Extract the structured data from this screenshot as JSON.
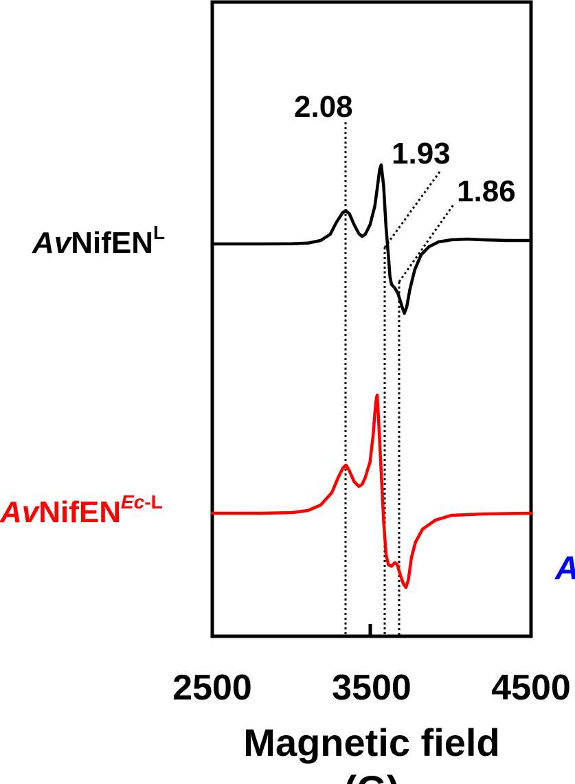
{
  "chart_data": {
    "type": "line",
    "xlabel": "Magnetic field",
    "xunit": "(G)",
    "xlim": [
      2500,
      4500
    ],
    "xticks": [
      2500,
      3500,
      4500
    ],
    "grid": false,
    "series": [
      {
        "name": "AvNifEN",
        "superscript": "L",
        "color": "#000000",
        "offset": 0,
        "points": [
          [
            2500,
            0
          ],
          [
            2800,
            0
          ],
          [
            3000,
            -0.3
          ],
          [
            3100,
            -1.2
          ],
          [
            3180,
            -5
          ],
          [
            3240,
            -14
          ],
          [
            3280,
            -32
          ],
          [
            3320,
            -46
          ],
          [
            3340,
            -48
          ],
          [
            3360,
            -44
          ],
          [
            3390,
            -28
          ],
          [
            3420,
            -15
          ],
          [
            3440,
            -11
          ],
          [
            3460,
            -14
          ],
          [
            3490,
            -28
          ],
          [
            3520,
            -55
          ],
          [
            3540,
            -90
          ],
          [
            3550,
            -108
          ],
          [
            3560,
            -115
          ],
          [
            3575,
            -85
          ],
          [
            3590,
            -25
          ],
          [
            3605,
            18
          ],
          [
            3615,
            48
          ],
          [
            3625,
            59
          ],
          [
            3645,
            64
          ],
          [
            3665,
            72
          ],
          [
            3690,
            91
          ],
          [
            3705,
            101
          ],
          [
            3720,
            92
          ],
          [
            3740,
            66
          ],
          [
            3770,
            38
          ],
          [
            3810,
            16
          ],
          [
            3860,
            4
          ],
          [
            3920,
            -3
          ],
          [
            4000,
            -6
          ],
          [
            4100,
            -7
          ],
          [
            4200,
            -6
          ],
          [
            4350,
            -5
          ],
          [
            4500,
            -5
          ]
        ]
      },
      {
        "name": "AvNifEN",
        "superscript": "Ec-L",
        "color": "#ff0000",
        "offset": 392,
        "points": [
          [
            2500,
            0
          ],
          [
            2800,
            0
          ],
          [
            3000,
            -1
          ],
          [
            3100,
            -4
          ],
          [
            3180,
            -12
          ],
          [
            3250,
            -30
          ],
          [
            3290,
            -52
          ],
          [
            3320,
            -66
          ],
          [
            3340,
            -70
          ],
          [
            3360,
            -62
          ],
          [
            3390,
            -46
          ],
          [
            3420,
            -39
          ],
          [
            3440,
            -42
          ],
          [
            3460,
            -52
          ],
          [
            3490,
            -75
          ],
          [
            3510,
            -115
          ],
          [
            3520,
            -145
          ],
          [
            3530,
            -168
          ],
          [
            3535,
            -172
          ],
          [
            3545,
            -130
          ],
          [
            3560,
            -60
          ],
          [
            3575,
            10
          ],
          [
            3590,
            60
          ],
          [
            3605,
            75
          ],
          [
            3625,
            77
          ],
          [
            3645,
            72
          ],
          [
            3660,
            74
          ],
          [
            3680,
            90
          ],
          [
            3700,
            103
          ],
          [
            3715,
            108
          ],
          [
            3730,
            97
          ],
          [
            3750,
            64
          ],
          [
            3775,
            42
          ],
          [
            3820,
            23
          ],
          [
            3900,
            10
          ],
          [
            4000,
            3
          ],
          [
            4200,
            1
          ],
          [
            4500,
            0
          ]
        ]
      }
    ],
    "annotations": [
      {
        "text": "2.08",
        "x": 3340
      },
      {
        "text": "1.93",
        "x": 3590
      },
      {
        "text": "1.86",
        "x": 3680
      }
    ],
    "marker_x": 3500,
    "partial_series_label": "A",
    "partial_series_color": "#0000ff"
  }
}
